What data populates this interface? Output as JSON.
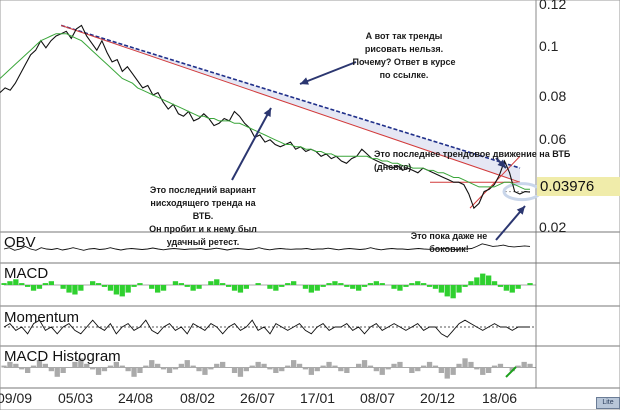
{
  "chart_data": {
    "type": "line",
    "price": {
      "yticks": [
        0.12,
        0.1,
        0.08,
        0.06,
        0.02
      ],
      "ylim": [
        0.025,
        0.12
      ],
      "current_value": "0.03976",
      "close": [
        0.082,
        0.084,
        0.083,
        0.086,
        0.09,
        0.094,
        0.098,
        0.1,
        0.104,
        0.101,
        0.104,
        0.106,
        0.107,
        0.108,
        0.105,
        0.109,
        0.1105,
        0.106,
        0.103,
        0.1,
        0.104,
        0.099,
        0.095,
        0.096,
        0.091,
        0.093,
        0.09,
        0.087,
        0.084,
        0.085,
        0.081,
        0.082,
        0.078,
        0.075,
        0.077,
        0.073,
        0.072,
        0.074,
        0.07,
        0.071,
        0.073,
        0.071,
        0.068,
        0.069,
        0.071,
        0.07,
        0.074,
        0.072,
        0.069,
        0.067,
        0.063,
        0.064,
        0.061,
        0.062,
        0.06,
        0.059,
        0.06,
        0.061,
        0.058,
        0.059,
        0.057,
        0.058,
        0.057,
        0.055,
        0.056,
        0.054,
        0.055,
        0.053,
        0.052,
        0.054,
        0.055,
        0.058,
        0.056,
        0.054,
        0.053,
        0.052,
        0.051,
        0.05,
        0.051,
        0.049,
        0.05,
        0.049,
        0.048,
        0.05,
        0.049,
        0.048,
        0.047,
        0.046,
        0.045,
        0.044,
        0.044,
        0.043,
        0.039,
        0.033,
        0.035,
        0.04,
        0.041,
        0.043,
        0.047,
        0.053,
        0.048,
        0.04,
        0.039,
        0.04,
        0.0398
      ],
      "sma": [
        0.088,
        0.09,
        0.092,
        0.094,
        0.096,
        0.098,
        0.1,
        0.102,
        0.104,
        0.105,
        0.106,
        0.107,
        0.107,
        0.107,
        0.106,
        0.105,
        0.104,
        0.102,
        0.1,
        0.098,
        0.096,
        0.094,
        0.092,
        0.09,
        0.088,
        0.087,
        0.086,
        0.084,
        0.083,
        0.082,
        0.081,
        0.08,
        0.079,
        0.078,
        0.077,
        0.076,
        0.075,
        0.074,
        0.073,
        0.072,
        0.072,
        0.071,
        0.071,
        0.07,
        0.07,
        0.07,
        0.069,
        0.069,
        0.068,
        0.067,
        0.066,
        0.065,
        0.064,
        0.063,
        0.062,
        0.061,
        0.06,
        0.06,
        0.059,
        0.059,
        0.058,
        0.058,
        0.057,
        0.057,
        0.056,
        0.056,
        0.055,
        0.055,
        0.055,
        0.055,
        0.055,
        0.055,
        0.055,
        0.054,
        0.054,
        0.053,
        0.053,
        0.052,
        0.052,
        0.051,
        0.051,
        0.05,
        0.05,
        0.05,
        0.049,
        0.049,
        0.048,
        0.048,
        0.047,
        0.046,
        0.046,
        0.045,
        0.044,
        0.043,
        0.042,
        0.042,
        0.042,
        0.042,
        0.043,
        0.044,
        0.044,
        0.043,
        0.042,
        0.041,
        0.041
      ]
    },
    "panels": [
      {
        "name": "OBV",
        "values": [
          0.5,
          0.55,
          0.45,
          0.5,
          0.6,
          0.5,
          0.45,
          0.55,
          0.5,
          0.48,
          0.52,
          0.46,
          0.5,
          0.55,
          0.5,
          0.45,
          0.5,
          0.52,
          0.48,
          0.5,
          0.55,
          0.5,
          0.46,
          0.5,
          0.52,
          0.5,
          0.48,
          0.5,
          0.54,
          0.5,
          0.47,
          0.5,
          0.52,
          0.5,
          0.48,
          0.5,
          0.5,
          0.52,
          0.48,
          0.5,
          0.53,
          0.5,
          0.46,
          0.5,
          0.52,
          0.5,
          0.48,
          0.5,
          0.55,
          0.5,
          0.47,
          0.5,
          0.52,
          0.5,
          0.49,
          0.5,
          0.5,
          0.52,
          0.48,
          0.5,
          0.5,
          0.53,
          0.5,
          0.47,
          0.5,
          0.52,
          0.5,
          0.48,
          0.5,
          0.55,
          0.5,
          0.47,
          0.5,
          0.52,
          0.5,
          0.5,
          0.48,
          0.5,
          0.52,
          0.5,
          0.49,
          0.5,
          0.5,
          0.52,
          0.5,
          0.48,
          0.5,
          0.5,
          0.52,
          0.6,
          0.7,
          0.65,
          0.6,
          0.62,
          0.65,
          0.6,
          0.58,
          0.6,
          0.62,
          0.6
        ]
      },
      {
        "name": "MACD",
        "values": [
          0.1,
          0.2,
          0.3,
          0.1,
          -0.1,
          -0.3,
          -0.2,
          0.1,
          0.2,
          0.0,
          -0.2,
          -0.4,
          -0.5,
          -0.3,
          0.0,
          0.2,
          0.1,
          -0.1,
          -0.3,
          -0.5,
          -0.6,
          -0.4,
          -0.1,
          0.1,
          0.0,
          -0.2,
          -0.4,
          -0.3,
          0.0,
          0.2,
          0.1,
          -0.1,
          -0.3,
          -0.2,
          0.0,
          0.2,
          0.3,
          0.1,
          -0.1,
          -0.3,
          -0.4,
          -0.2,
          0.0,
          0.1,
          0.0,
          -0.2,
          -0.3,
          -0.1,
          0.1,
          0.2,
          0.0,
          -0.2,
          -0.4,
          -0.3,
          -0.1,
          0.1,
          0.2,
          0.1,
          -0.1,
          -0.2,
          -0.3,
          -0.1,
          0.1,
          0.2,
          0.1,
          0.0,
          -0.2,
          -0.3,
          -0.1,
          0.1,
          0.2,
          0.1,
          -0.1,
          -0.2,
          -0.4,
          -0.6,
          -0.7,
          -0.4,
          -0.1,
          0.2,
          0.4,
          0.6,
          0.5,
          0.2,
          -0.1,
          -0.3,
          -0.4,
          -0.2,
          0.0,
          0.1
        ]
      },
      {
        "name": "Momentum",
        "values": [
          0.5,
          0.6,
          0.4,
          0.5,
          0.3,
          0.6,
          0.7,
          0.4,
          0.5,
          0.3,
          0.5,
          0.6,
          0.4,
          0.3,
          0.5,
          0.7,
          0.5,
          0.4,
          0.6,
          0.3,
          0.5,
          0.6,
          0.4,
          0.5,
          0.7,
          0.4,
          0.3,
          0.5,
          0.6,
          0.4,
          0.5,
          0.3,
          0.6,
          0.5,
          0.4,
          0.6,
          0.5,
          0.3,
          0.5,
          0.6,
          0.4,
          0.5,
          0.7,
          0.4,
          0.5,
          0.3,
          0.6,
          0.5,
          0.4,
          0.5,
          0.6,
          0.4,
          0.3,
          0.5,
          0.6,
          0.4,
          0.5,
          0.5,
          0.6,
          0.4,
          0.5,
          0.3,
          0.5,
          0.6,
          0.4,
          0.5,
          0.6,
          0.5,
          0.4,
          0.5,
          0.6,
          0.4,
          0.5,
          0.5,
          0.3,
          0.2,
          0.4,
          0.6,
          0.7,
          0.6,
          0.5,
          0.4,
          0.5,
          0.6,
          0.5,
          0.5,
          0.4,
          0.5,
          0.5,
          0.5
        ]
      },
      {
        "name": "MACD Histogram",
        "values": [
          0.1,
          0.3,
          0.2,
          -0.1,
          -0.3,
          0.1,
          0.4,
          0.2,
          -0.2,
          -0.5,
          -0.3,
          0.0,
          0.3,
          0.5,
          0.2,
          -0.1,
          -0.4,
          -0.2,
          0.1,
          0.3,
          0.1,
          -0.2,
          -0.5,
          -0.3,
          0.1,
          0.4,
          0.2,
          -0.1,
          -0.3,
          -0.1,
          0.2,
          0.4,
          0.1,
          -0.2,
          -0.4,
          -0.1,
          0.2,
          0.3,
          0.0,
          -0.3,
          -0.5,
          -0.2,
          0.1,
          0.3,
          0.2,
          -0.1,
          -0.3,
          -0.2,
          0.1,
          0.4,
          0.2,
          -0.1,
          -0.4,
          -0.2,
          0.1,
          0.3,
          0.1,
          -0.2,
          -0.3,
          0.0,
          0.2,
          0.4,
          0.1,
          -0.2,
          -0.4,
          -0.1,
          0.2,
          0.3,
          0.0,
          -0.3,
          -0.2,
          0.1,
          0.3,
          0.1,
          -0.3,
          -0.6,
          -0.4,
          0.2,
          0.5,
          0.3,
          -0.1,
          -0.4,
          -0.3,
          0.1,
          0.2,
          0.0,
          -0.2,
          0.1,
          0.3,
          0.2
        ]
      }
    ],
    "xticks": [
      "09/09",
      "05/03",
      "24/08",
      "08/02",
      "26/07",
      "17/01",
      "08/07",
      "20/12",
      "18/06"
    ],
    "annotations": [
      "А вот так тренды\nрисовать нельзя.\nПочему? Ответ в курсе\nпо ссылке.",
      "Это последнее трендовое движение на ВТБ (дневке)",
      "Это последний вариант\nнисходящего тренда на ВТБ.\nОн пробит и к нему был\nудачный ретест.",
      "Это пока даже не\nбоковик!"
    ],
    "colors": {
      "price": "#111111",
      "sma": "#3aa63a",
      "trend_dashed": "#1f2f8a",
      "trend_red": "#d23a3a",
      "shade": "#dcdff0",
      "macd_bars": "#2fd02f",
      "hist_bars": "#aaaaaa",
      "arrow": "#2b3670",
      "flat": "#9a9a9a"
    },
    "watermark": "Lite"
  }
}
